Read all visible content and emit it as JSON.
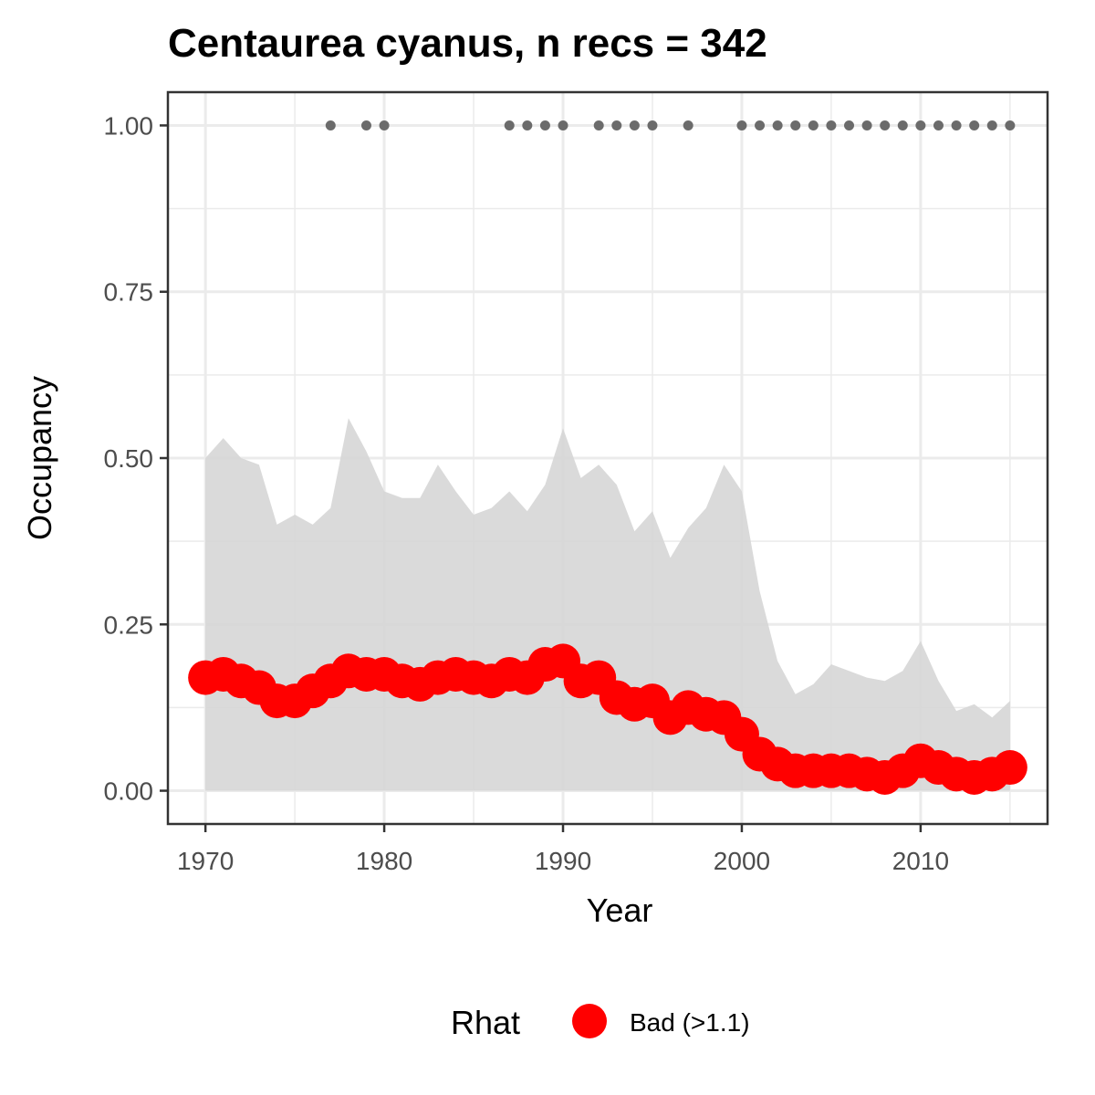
{
  "chart_data": {
    "type": "line",
    "title": "Centaurea cyanus, n recs = 342",
    "xlabel": "Year",
    "ylabel": "Occupancy",
    "xlim": [
      1967.9,
      2017.1
    ],
    "ylim": [
      -0.05,
      1.05
    ],
    "x_ticks": [
      1970,
      1980,
      1990,
      2000,
      2010
    ],
    "x_tick_labels": [
      "1970",
      "1980",
      "1990",
      "2000",
      "2010"
    ],
    "x_minor_ticks": [
      1975,
      1985,
      1995,
      2005,
      2015
    ],
    "y_ticks": [
      0,
      0.25,
      0.5,
      0.75,
      1.0
    ],
    "y_tick_labels": [
      "0.00",
      "0.25",
      "0.50",
      "0.75",
      "1.00"
    ],
    "y_minor_ticks": [
      0.125,
      0.375,
      0.625,
      0.875
    ],
    "grid": true,
    "years": [
      1970,
      1971,
      1972,
      1973,
      1974,
      1975,
      1976,
      1977,
      1978,
      1979,
      1980,
      1981,
      1982,
      1983,
      1984,
      1985,
      1986,
      1987,
      1988,
      1989,
      1990,
      1991,
      1992,
      1993,
      1994,
      1995,
      1996,
      1997,
      1998,
      1999,
      2000,
      2001,
      2002,
      2003,
      2004,
      2005,
      2006,
      2007,
      2008,
      2009,
      2010,
      2011,
      2012,
      2013,
      2014,
      2015
    ],
    "mean": [
      0.17,
      0.175,
      0.165,
      0.155,
      0.135,
      0.135,
      0.15,
      0.165,
      0.18,
      0.175,
      0.175,
      0.165,
      0.16,
      0.17,
      0.175,
      0.17,
      0.165,
      0.175,
      0.17,
      0.19,
      0.195,
      0.165,
      0.17,
      0.14,
      0.13,
      0.135,
      0.11,
      0.125,
      0.115,
      0.11,
      0.085,
      0.055,
      0.04,
      0.03,
      0.03,
      0.03,
      0.03,
      0.025,
      0.02,
      0.03,
      0.045,
      0.035,
      0.025,
      0.02,
      0.025,
      0.035
    ],
    "upper": [
      0.5,
      0.53,
      0.5,
      0.49,
      0.4,
      0.415,
      0.4,
      0.425,
      0.56,
      0.51,
      0.45,
      0.44,
      0.44,
      0.49,
      0.45,
      0.415,
      0.425,
      0.45,
      0.42,
      0.46,
      0.545,
      0.47,
      0.49,
      0.46,
      0.39,
      0.42,
      0.35,
      0.395,
      0.425,
      0.49,
      0.45,
      0.3,
      0.195,
      0.145,
      0.16,
      0.19,
      0.18,
      0.17,
      0.165,
      0.18,
      0.225,
      0.165,
      0.12,
      0.13,
      0.11,
      0.135
    ],
    "lower": [
      0,
      0,
      0,
      0,
      0,
      0,
      0,
      0,
      0,
      0,
      0,
      0,
      0,
      0,
      0,
      0,
      0,
      0,
      0,
      0,
      0,
      0,
      0,
      0,
      0,
      0,
      0,
      0,
      0,
      0,
      0,
      0,
      0,
      0,
      0,
      0,
      0,
      0,
      0,
      0,
      0,
      0,
      0,
      0,
      0,
      0
    ],
    "record_years": [
      1977,
      1979,
      1980,
      1987,
      1988,
      1989,
      1990,
      1992,
      1993,
      1994,
      1995,
      1997,
      2000,
      2001,
      2002,
      2003,
      2004,
      2005,
      2006,
      2007,
      2008,
      2009,
      2010,
      2011,
      2012,
      2013,
      2014,
      2015
    ],
    "record_y": 1.0,
    "colors": {
      "ribbon": "#d6d6d6",
      "mean_point": "#ff0000",
      "record_point": "#6b6b6b",
      "grid": "#ebebeb",
      "panel_border": "#333333"
    },
    "legend": {
      "title": "Rhat",
      "label": "Bad (>1.1)",
      "position": "bottom"
    }
  }
}
